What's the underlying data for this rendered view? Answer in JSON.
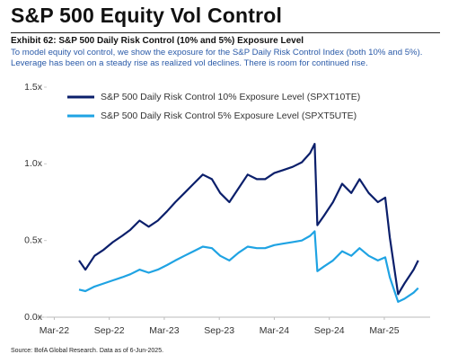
{
  "header": {
    "title": "S&P 500 Equity Vol Control"
  },
  "chart_data": {
    "type": "line",
    "title": "Exhibit 62: S&P 500 Daily Risk Control (10% and 5%) Exposure Level",
    "subtitle": "To model equity vol control, we show the exposure for the S&P Daily Risk Control Index (both 10% and 5%). Leverage has been on a steady rise as realized vol declines. There is room for continued rise.",
    "source": "Source: BofA Global Research. Data as of 6-Jun-2025.",
    "x": [
      4.7,
      5.4,
      6.4,
      7.4,
      8.4,
      9.4,
      10.3,
      11.3,
      12.3,
      13.3,
      14.3,
      15.2,
      16.2,
      17.2,
      18.2,
      19.2,
      20.1,
      21.1,
      22.1,
      23.1,
      24.1,
      25.0,
      26.0,
      27.0,
      28.0,
      29.0,
      29.9,
      30.4,
      30.7,
      31.4,
      32.4,
      33.4,
      34.4,
      35.3,
      36.3,
      37.3,
      38.1,
      38.6,
      39.5,
      40.2,
      41.2,
      41.7
    ],
    "series": [
      {
        "name": "S&P 500 Daily Risk Control 10% Exposure Level (SPXT10TE)",
        "color": "#0b1f6b",
        "values": [
          0.37,
          0.31,
          0.4,
          0.44,
          0.49,
          0.53,
          0.57,
          0.63,
          0.59,
          0.63,
          0.69,
          0.75,
          0.81,
          0.87,
          0.93,
          0.9,
          0.81,
          0.75,
          0.84,
          0.93,
          0.9,
          0.9,
          0.94,
          0.96,
          0.98,
          1.01,
          1.07,
          1.13,
          0.6,
          0.66,
          0.75,
          0.87,
          0.81,
          0.9,
          0.81,
          0.75,
          0.78,
          0.52,
          0.15,
          0.22,
          0.31,
          0.37
        ]
      },
      {
        "name": "S&P 500 Daily Risk Control 5% Exposure Level (SPXT5UTE)",
        "color": "#1fa3e3",
        "values": [
          0.18,
          0.17,
          0.2,
          0.22,
          0.24,
          0.26,
          0.28,
          0.31,
          0.29,
          0.31,
          0.34,
          0.37,
          0.4,
          0.43,
          0.46,
          0.45,
          0.4,
          0.37,
          0.42,
          0.46,
          0.45,
          0.45,
          0.47,
          0.48,
          0.49,
          0.5,
          0.53,
          0.56,
          0.3,
          0.33,
          0.37,
          0.43,
          0.4,
          0.45,
          0.4,
          0.37,
          0.39,
          0.26,
          0.1,
          0.12,
          0.16,
          0.19
        ]
      }
    ],
    "xlim": [
      0,
      43
    ],
    "xticks": [
      {
        "value": 2,
        "label": "Mar-22"
      },
      {
        "value": 8,
        "label": "Sep-22"
      },
      {
        "value": 14,
        "label": "Mar-23"
      },
      {
        "value": 20,
        "label": "Sep-23"
      },
      {
        "value": 26,
        "label": "Mar-24"
      },
      {
        "value": 32,
        "label": "Sep-24"
      },
      {
        "value": 38,
        "label": "Mar-25"
      }
    ],
    "ylim": [
      0,
      1.5
    ],
    "yticks": [
      {
        "value": 0,
        "label": "0.0x"
      },
      {
        "value": 0.5,
        "label": "0.5x"
      },
      {
        "value": 1,
        "label": "1.0x"
      },
      {
        "value": 1.5,
        "label": "1.5x"
      }
    ],
    "legend": "top-left",
    "grid": false
  }
}
